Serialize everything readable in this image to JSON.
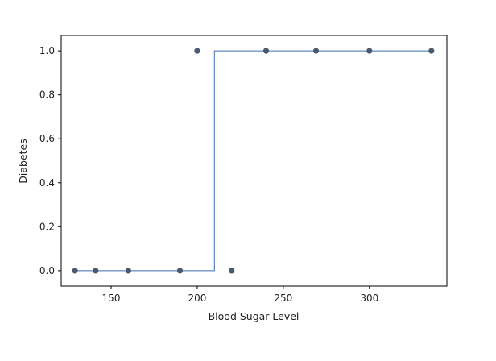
{
  "chart_data": {
    "type": "scatter",
    "title": "",
    "xlabel": "Blood Sugar Level",
    "ylabel": "Diabetes",
    "xlim": [
      121,
      345
    ],
    "ylim": [
      -0.07,
      1.07
    ],
    "x_ticks": [
      150,
      200,
      250,
      300
    ],
    "y_ticks": [
      0.0,
      0.2,
      0.4,
      0.6,
      0.8,
      1.0
    ],
    "x_tick_labels": [
      "150",
      "200",
      "250",
      "300"
    ],
    "y_tick_labels": [
      "0.0",
      "0.2",
      "0.4",
      "0.6",
      "0.8",
      "1.0"
    ],
    "grid": false,
    "series": [
      {
        "type": "scatter",
        "color": "#4a5a6e",
        "x": [
          129,
          141,
          160,
          190,
          200,
          220,
          240,
          269,
          300,
          336
        ],
        "y": [
          0,
          0,
          0,
          0,
          1,
          0,
          1,
          1,
          1,
          1
        ]
      },
      {
        "type": "step",
        "color": "#3d6fb0",
        "x": [
          129,
          210,
          210,
          336
        ],
        "y": [
          0,
          0,
          1,
          1
        ]
      }
    ]
  }
}
